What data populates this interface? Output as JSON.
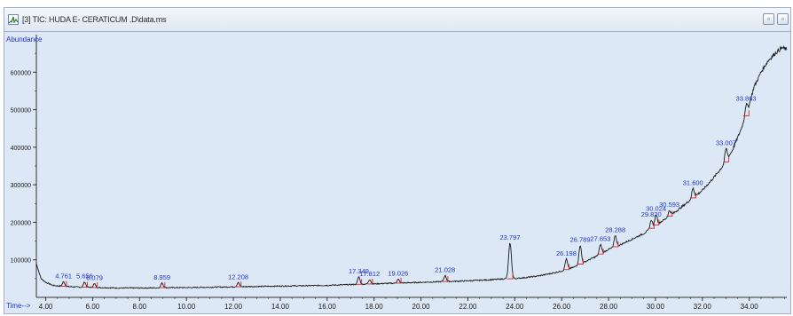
{
  "window": {
    "title": "[3] TIC: HUDA E- CERATICUM .D\\data.ms",
    "restore_symbol": "▫",
    "close_symbol": "▫",
    "icon": "chromatogram-icon"
  },
  "colors": {
    "plot_background": "#dde8f6",
    "trace": "#1a1a1a",
    "baseline_marker": "#e02020",
    "peak_label": "#2233cc",
    "axis": "#333333"
  },
  "chart_data": {
    "type": "line",
    "ylabel": "Abundance",
    "xlabel": "Time-->",
    "xlim": [
      3.6,
      35.6
    ],
    "ylim": [
      0,
      700000
    ],
    "x_ticks": [
      "4.00",
      "6.00",
      "8.00",
      "10.00",
      "12.00",
      "14.00",
      "16.00",
      "18.00",
      "20.00",
      "22.00",
      "24.00",
      "26.00",
      "28.00",
      "30.00",
      "32.00",
      "34.00"
    ],
    "x_tick_values": [
      4,
      6,
      8,
      10,
      12,
      14,
      16,
      18,
      20,
      22,
      24,
      26,
      28,
      30,
      32,
      34
    ],
    "y_ticks": [
      "100000",
      "200000",
      "300000",
      "400000",
      "500000",
      "600000"
    ],
    "y_tick_values": [
      100000,
      200000,
      300000,
      400000,
      500000,
      600000
    ],
    "trace": {
      "x": [
        3.6,
        3.8,
        4.0,
        4.3,
        4.6,
        4.9,
        5.2,
        5.5,
        5.8,
        6.1,
        6.5,
        7.0,
        7.5,
        8.0,
        8.5,
        9.0,
        10.0,
        11.0,
        12.0,
        13.0,
        14.0,
        15.0,
        16.0,
        17.0,
        18.0,
        19.0,
        20.0,
        21.0,
        22.0,
        23.0,
        23.5,
        24.0,
        24.5,
        25.0,
        25.5,
        26.0,
        26.5,
        27.0,
        27.5,
        28.0,
        28.5,
        29.0,
        29.5,
        30.0,
        30.5,
        31.0,
        31.5,
        32.0,
        32.5,
        33.0,
        33.3,
        33.6,
        33.9,
        34.2,
        34.5,
        34.8,
        35.1,
        35.4,
        35.6
      ],
      "y": [
        90000,
        50000,
        40000,
        32000,
        30000,
        29000,
        28000,
        27000,
        27000,
        26000,
        26000,
        25000,
        25000,
        25000,
        25000,
        26000,
        26000,
        27000,
        28000,
        29000,
        30000,
        31000,
        32000,
        34000,
        36000,
        38000,
        40000,
        42000,
        44000,
        47000,
        49000,
        50000,
        53000,
        57000,
        63000,
        70000,
        80000,
        95000,
        110000,
        128000,
        140000,
        155000,
        170000,
        192000,
        212000,
        235000,
        260000,
        285000,
        320000,
        360000,
        395000,
        440000,
        490000,
        560000,
        600000,
        630000,
        650000,
        665000,
        660000
      ]
    },
    "peaks": [
      {
        "label": "4.761",
        "x": 4.761,
        "height": 12000
      },
      {
        "label": "5.656",
        "x": 5.656,
        "height": 14000
      },
      {
        "label": "6.079",
        "x": 6.079,
        "height": 10000
      },
      {
        "label": "8.959",
        "x": 8.959,
        "height": 12000
      },
      {
        "label": "12.208",
        "x": 12.208,
        "height": 11000
      },
      {
        "label": "17.349",
        "x": 17.349,
        "height": 20000
      },
      {
        "label": "17.812",
        "x": 17.812,
        "height": 12000
      },
      {
        "label": "19.026",
        "x": 19.026,
        "height": 10000
      },
      {
        "label": "21.028",
        "x": 21.028,
        "height": 16000
      },
      {
        "label": "23.797",
        "x": 23.797,
        "height": 95000
      },
      {
        "label": "26.198",
        "x": 26.198,
        "height": 28000
      },
      {
        "label": "26.789",
        "x": 26.789,
        "height": 50000
      },
      {
        "label": "27.653",
        "x": 27.653,
        "height": 25000
      },
      {
        "label": "28.288",
        "x": 28.288,
        "height": 30000
      },
      {
        "label": "29.820",
        "x": 29.82,
        "height": 22000
      },
      {
        "label": "30.024",
        "x": 30.024,
        "height": 28000
      },
      {
        "label": "30.593",
        "x": 30.593,
        "height": 15000
      },
      {
        "label": "31.600",
        "x": 31.6,
        "height": 25000
      },
      {
        "label": "33.007",
        "x": 33.007,
        "height": 35000
      },
      {
        "label": "33.863",
        "x": 33.863,
        "height": 30000
      }
    ]
  }
}
